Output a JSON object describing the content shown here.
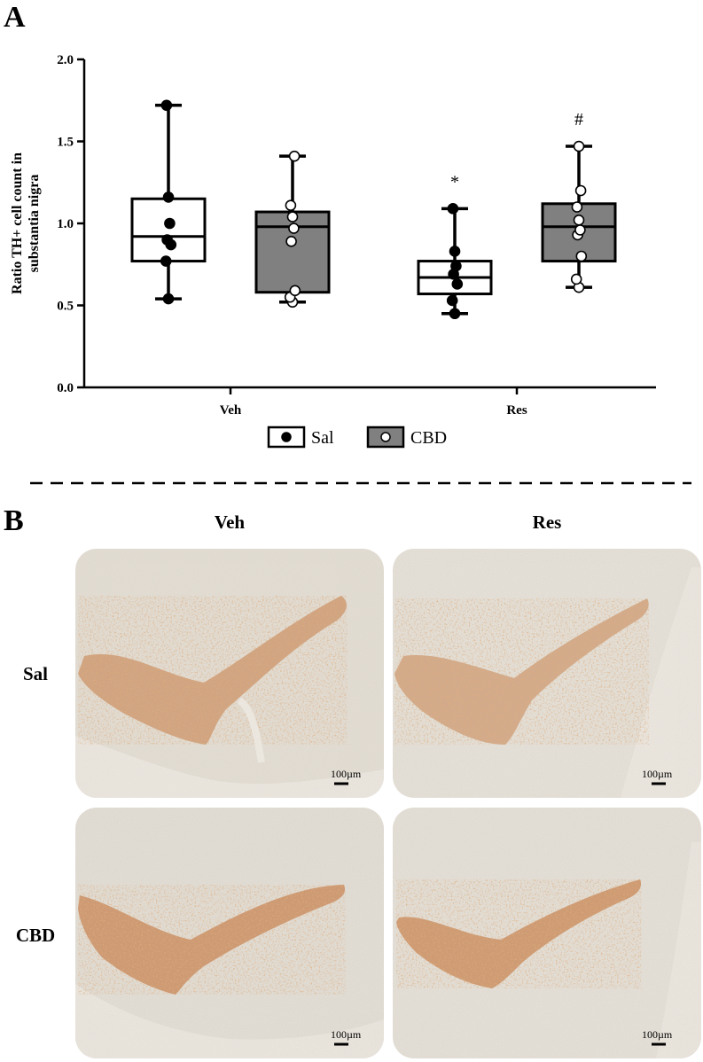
{
  "panels": {
    "a_label": "A",
    "b_label": "B"
  },
  "chart_data": {
    "type": "box",
    "ylabel": "Ratio TH+ cell count in substantia nigra",
    "ylabel_lines": [
      "Ratio TH+ cell count in",
      "substantia nigra"
    ],
    "ylim": [
      0,
      2.0
    ],
    "yticks": [
      "0.0",
      "0.5",
      "1.0",
      "1.5",
      "2.0"
    ],
    "categories": [
      "Veh",
      "Res"
    ],
    "legend_placement": "bottom-center",
    "series": [
      {
        "name": "Sal",
        "fill": "#ffffff",
        "point_fill": "#000000",
        "boxes": [
          {
            "group": "Veh",
            "min": 0.54,
            "q1": 0.77,
            "median": 0.92,
            "q3": 1.15,
            "max": 1.72,
            "points": [
              0.54,
              0.77,
              0.87,
              0.9,
              1.0,
              1.16,
              1.72
            ],
            "annotation": ""
          },
          {
            "group": "Res",
            "min": 0.45,
            "q1": 0.57,
            "median": 0.67,
            "q3": 0.77,
            "max": 1.09,
            "points": [
              0.45,
              0.53,
              0.63,
              0.69,
              0.74,
              0.83,
              1.09
            ],
            "annotation": "*"
          }
        ]
      },
      {
        "name": "CBD",
        "fill": "#808080",
        "point_fill": "#ffffff",
        "boxes": [
          {
            "group": "Veh",
            "min": 0.52,
            "q1": 0.58,
            "median": 0.98,
            "q3": 1.07,
            "max": 1.41,
            "points": [
              0.52,
              0.55,
              0.59,
              0.89,
              0.97,
              1.04,
              1.11,
              1.41
            ],
            "annotation": ""
          },
          {
            "group": "Res",
            "min": 0.61,
            "q1": 0.77,
            "median": 0.98,
            "q3": 1.12,
            "max": 1.47,
            "points": [
              0.61,
              0.66,
              0.8,
              0.93,
              0.96,
              1.02,
              1.1,
              1.2,
              1.47
            ],
            "annotation": "#"
          }
        ]
      }
    ]
  },
  "micrographs": {
    "col_labels": [
      "Veh",
      "Res"
    ],
    "row_labels": [
      "Sal",
      "CBD"
    ],
    "scale_bar": "100µm",
    "background_color": "#e4e0d8",
    "stain_color": "#c4773e"
  }
}
